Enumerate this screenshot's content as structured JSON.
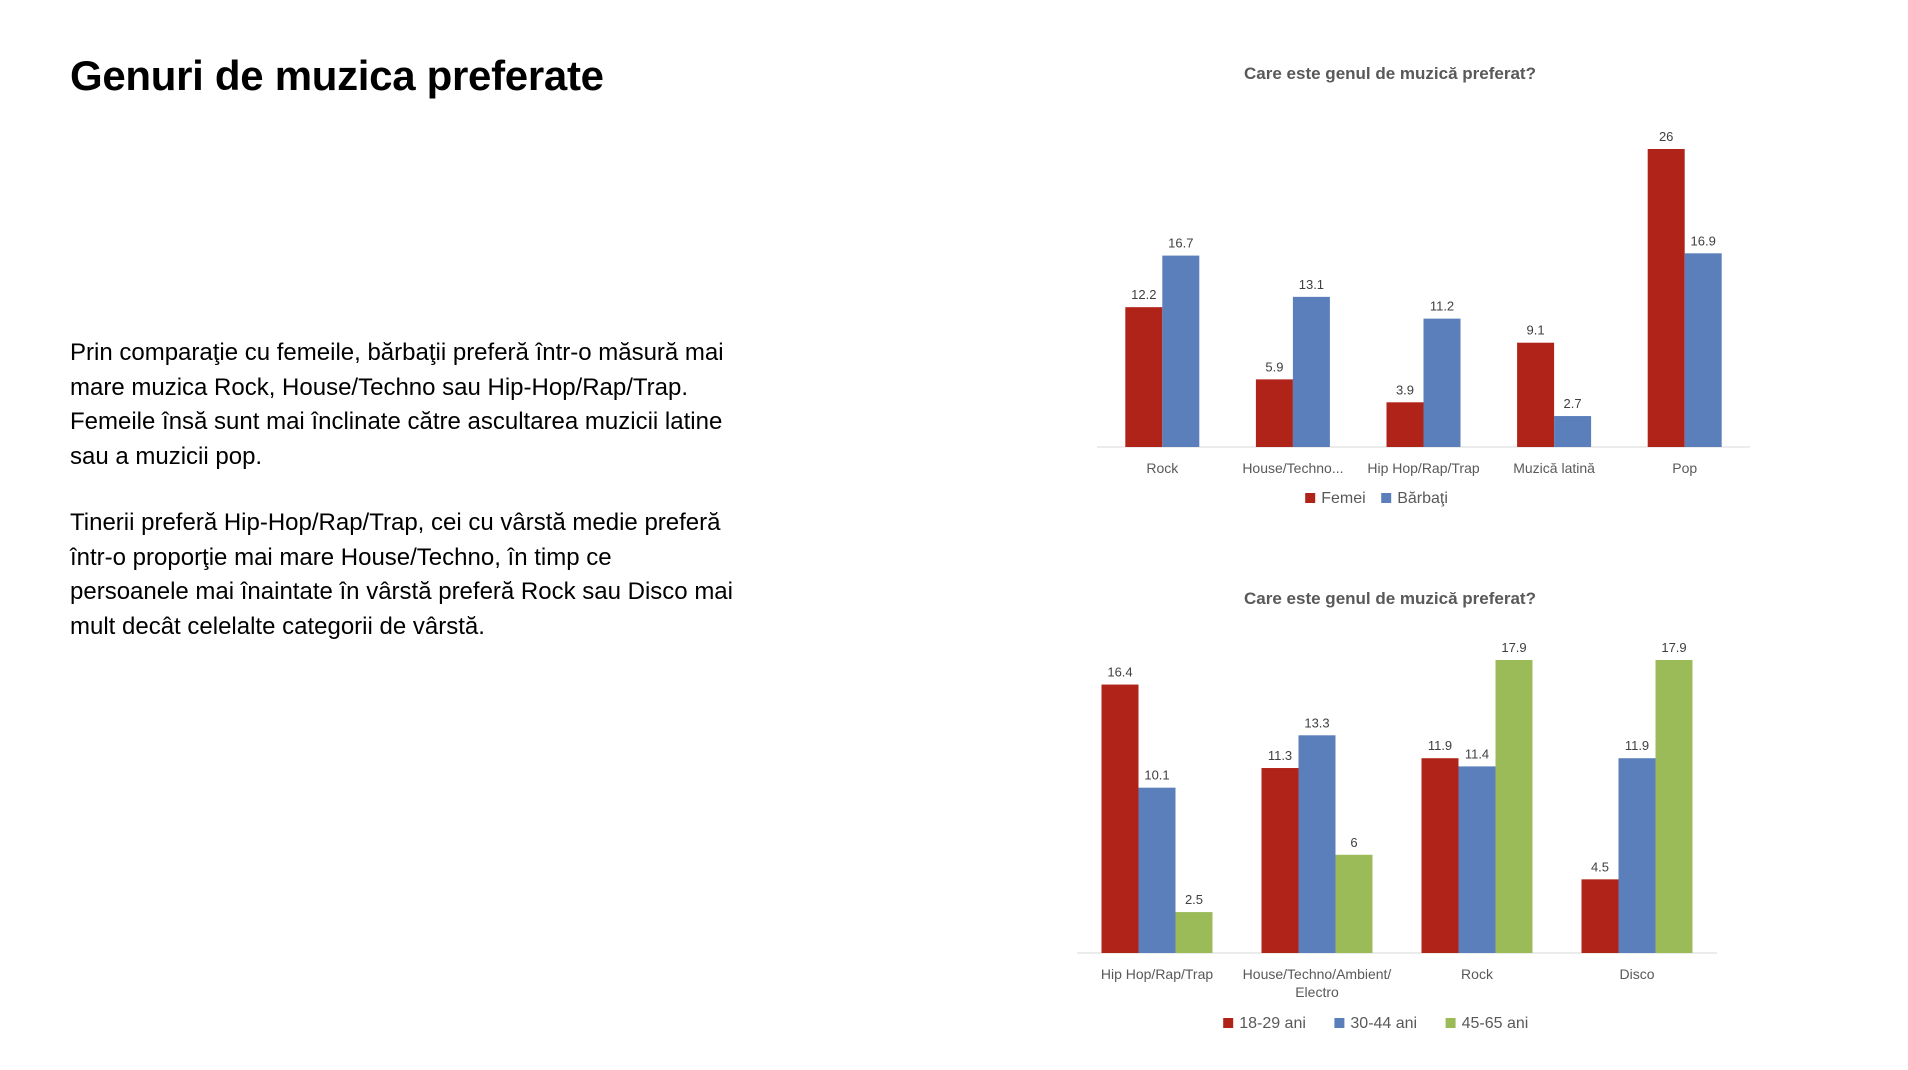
{
  "slide": {
    "title": "Genuri de muzica preferate",
    "paragraphs": [
      "Prin comparaţie cu femeile, bărbaţii preferă într-o măsură mai mare muzica Rock, House/Techno sau Hip-Hop/Rap/Trap. Femeile însă sunt mai înclinate către ascultarea  muzicii latine sau a muzicii pop.",
      "Tinerii preferă Hip-Hop/Rap/Trap, cei cu vârstă medie preferă într-o proporţie mai mare House/Techno, în timp ce persoanele mai înaintate în vârstă preferă Rock sau Disco mai mult decât celelalte categorii de vârstă."
    ]
  },
  "chart_data": [
    {
      "type": "bar",
      "title": "Care este genul de muzică preferat?",
      "categories": [
        "Rock",
        "House/Techno...",
        "Hip Hop/Rap/Trap",
        "Muzică latină",
        "Pop"
      ],
      "series": [
        {
          "name": "Femei",
          "color": "#B02318",
          "values": [
            12.2,
            5.9,
            3.9,
            9.1,
            26
          ]
        },
        {
          "name": "Bărbaţi",
          "color": "#5B7FBA",
          "values": [
            16.7,
            13.1,
            11.2,
            2.7,
            16.9
          ]
        }
      ],
      "ylim": [
        0,
        26
      ],
      "grid": false,
      "legend_position": "bottom",
      "data_labels": true
    },
    {
      "type": "bar",
      "title": "Care este genul de muzică preferat?",
      "categories": [
        "Hip Hop/Rap/Trap",
        "House/Techno/Ambient/\nElectro",
        "Rock",
        "Disco"
      ],
      "series": [
        {
          "name": "18-29 ani",
          "color": "#B02318",
          "values": [
            16.4,
            11.3,
            11.9,
            4.5
          ]
        },
        {
          "name": "30-44 ani",
          "color": "#5B7FBA",
          "values": [
            10.1,
            13.3,
            11.4,
            11.9
          ]
        },
        {
          "name": "45-65 ani",
          "color": "#9BBB59",
          "values": [
            2.5,
            6,
            17.9,
            17.9
          ]
        }
      ],
      "ylim": [
        0,
        17.9
      ],
      "grid": false,
      "legend_position": "bottom",
      "data_labels": true
    }
  ]
}
